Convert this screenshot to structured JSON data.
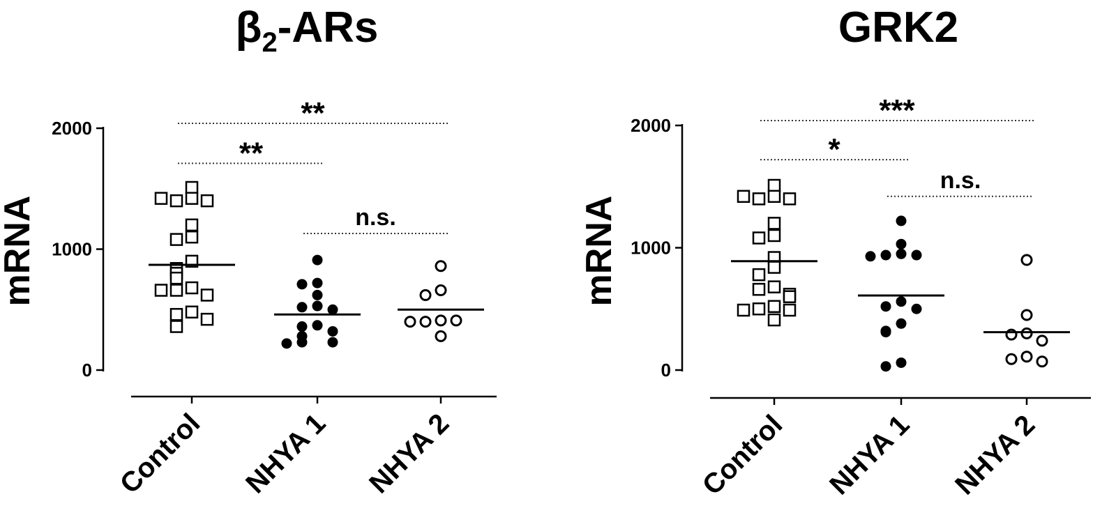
{
  "chart_data": [
    {
      "type": "scatter",
      "title": "β2-ARs",
      "title_base": "β",
      "title_sub": "2",
      "title_rest": "-ARs",
      "ylabel": "mRNA",
      "ylim": [
        0,
        2000
      ],
      "yticks": [
        "0",
        "1000",
        "2000"
      ],
      "categories": [
        "Control",
        "NHYA 1",
        "NHYA 2"
      ],
      "series": [
        {
          "category": "Control",
          "marker": "open-square",
          "mean": 870,
          "values": [
            1510,
            1420,
            1400,
            1400,
            1420,
            1200,
            1100,
            1080,
            900,
            840,
            800,
            760,
            680,
            660,
            620,
            660,
            480,
            460,
            420,
            360
          ]
        },
        {
          "category": "NHYA 1",
          "marker": "filled-circle",
          "mean": 460,
          "values": [
            910,
            720,
            710,
            620,
            530,
            520,
            500,
            370,
            360,
            320,
            280,
            230,
            230,
            220
          ]
        },
        {
          "category": "NHYA 2",
          "marker": "open-circle",
          "mean": 500,
          "values": [
            860,
            660,
            620,
            410,
            400,
            410,
            400,
            280
          ]
        }
      ],
      "significance": [
        {
          "from": "Control",
          "to": "NHYA 2",
          "label": "**",
          "level": 2040
        },
        {
          "from": "Control",
          "to": "NHYA 1",
          "label": "**",
          "level": 1710
        },
        {
          "from": "NHYA 1",
          "to": "NHYA 2",
          "label": "n.s.",
          "level": 1130
        }
      ]
    },
    {
      "type": "scatter",
      "title": "GRK2",
      "ylabel": "mRNA",
      "ylim": [
        0,
        2000
      ],
      "yticks": [
        "0",
        "1000",
        "2000"
      ],
      "categories": [
        "Control",
        "NHYA 1",
        "NHYA 2"
      ],
      "series": [
        {
          "category": "Control",
          "marker": "open-square",
          "mean": 890,
          "values": [
            1510,
            1420,
            1400,
            1400,
            1420,
            1200,
            1100,
            1080,
            920,
            840,
            780,
            680,
            660,
            620,
            600,
            520,
            500,
            490,
            490,
            410
          ]
        },
        {
          "category": "NHYA 1",
          "marker": "filled-circle",
          "mean": 610,
          "values": [
            1220,
            1030,
            950,
            940,
            940,
            930,
            560,
            520,
            500,
            380,
            320,
            310,
            60,
            30
          ]
        },
        {
          "category": "NHYA 2",
          "marker": "open-circle",
          "mean": 310,
          "values": [
            900,
            450,
            300,
            290,
            240,
            110,
            90,
            70
          ]
        }
      ],
      "significance": [
        {
          "from": "Control",
          "to": "NHYA 2",
          "label": "***",
          "level": 2040
        },
        {
          "from": "Control",
          "to": "NHYA 1",
          "label": "*",
          "level": 1720
        },
        {
          "from": "NHYA 1",
          "to": "NHYA 2",
          "label": "n.s.",
          "level": 1420
        }
      ]
    }
  ]
}
